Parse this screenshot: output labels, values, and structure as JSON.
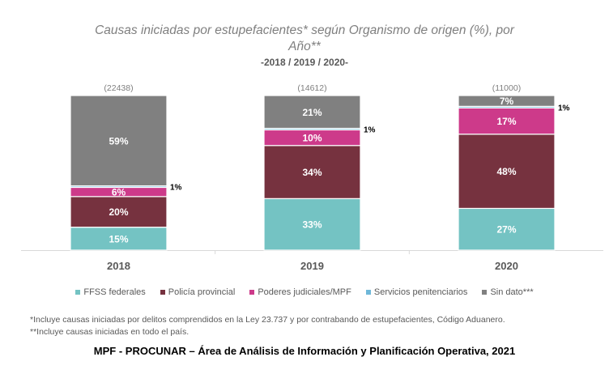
{
  "chart_data": {
    "type": "bar",
    "stacked": true,
    "title": "Causas iniciadas por estupefacientes* según Organismo de origen (%), por Año**",
    "title_line1": "Causas iniciadas por estupefacientes* según Organismo de origen (%), por",
    "title_line2": "Año**",
    "subtitle": "-2018 / 2019 / 2020-",
    "xlabel": "",
    "ylabel": "",
    "ylim": [
      0,
      100
    ],
    "grid": false,
    "legend_position": "bottom",
    "categories": [
      "2018",
      "2019",
      "2020"
    ],
    "totals": [
      "(22438)",
      "(14612)",
      "(11000)"
    ],
    "series": [
      {
        "name": "FFSS federales",
        "color": "#74c3c3",
        "values": [
          15,
          33,
          27
        ],
        "labels": [
          "15%",
          "33%",
          "27%"
        ]
      },
      {
        "name": "Policía provincial",
        "color": "#76323f",
        "values": [
          20,
          34,
          48
        ],
        "labels": [
          "20%",
          "34%",
          "48%"
        ]
      },
      {
        "name": "Poderes judiciales/MPF",
        "color": "#cd3a8a",
        "values": [
          6,
          10,
          17
        ],
        "labels": [
          "6%",
          "10%",
          "17%"
        ]
      },
      {
        "name": "Servicios penitenciarios",
        "color": "#6fb8d9",
        "values": [
          1,
          1,
          1
        ],
        "labels": [
          "1%",
          "1%",
          "1%"
        ]
      },
      {
        "name": "Sin dato***",
        "color": "#808080",
        "values": [
          59,
          21,
          7
        ],
        "labels": [
          "59%",
          "21%",
          "7%"
        ]
      }
    ]
  },
  "notes": [
    "*Incluye causas iniciadas por delitos comprendidos en la Ley 23.737 y por contrabando de estupefacientes, Código Aduanero.",
    "**Incluye causas iniciadas en todo el país."
  ],
  "source": "MPF - PROCUNAR – Área de Análisis de Información y Planificación Operativa, 2021"
}
